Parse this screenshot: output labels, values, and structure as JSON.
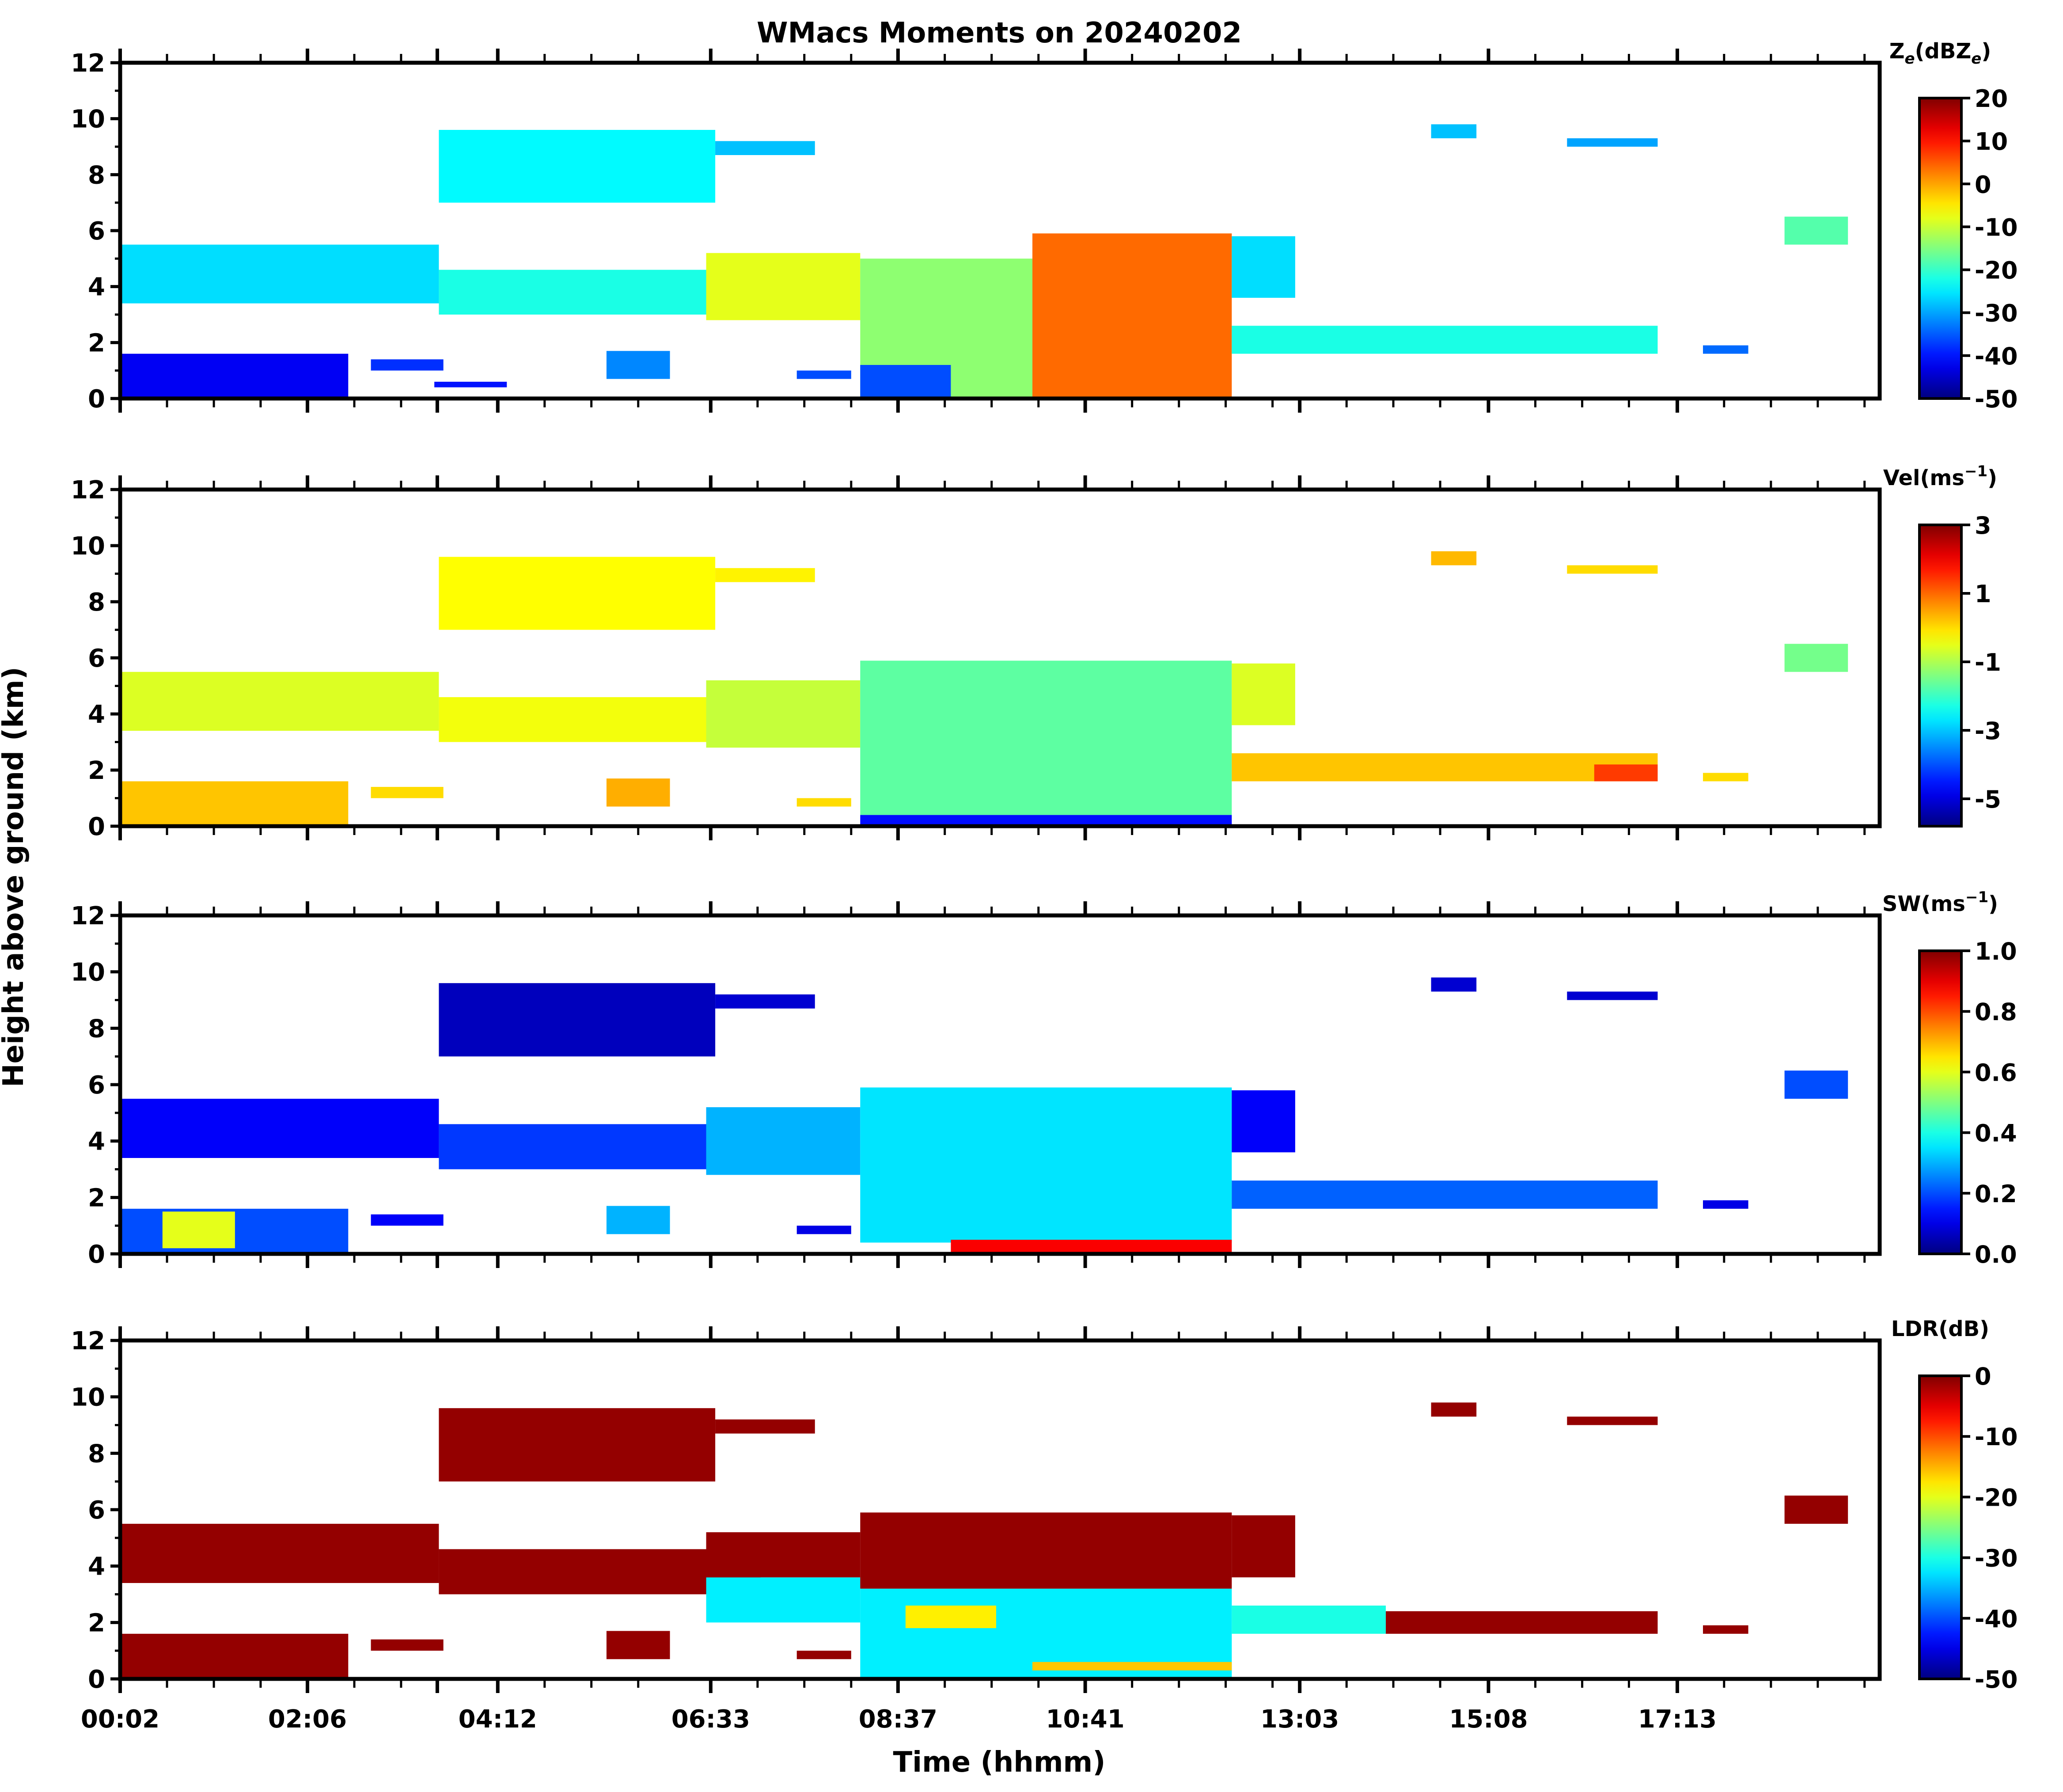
{
  "figure": {
    "title": "WMacs Moments on 20240202",
    "xlabel": "Time (hhmm)",
    "ylabel": "Height above ground (km)"
  },
  "colormap": "jet",
  "chart_data": [
    {
      "type": "heatmap",
      "id": "ze",
      "colorbar_label": "Ze(dBZe)",
      "colorbar_label_main": "Z",
      "colorbar_label_sub1": "e",
      "colorbar_label_mid": "(dBZ",
      "colorbar_label_sub2": "e",
      "colorbar_label_end": ")",
      "clim": [
        -50,
        20
      ],
      "cticks": [
        "20",
        "10",
        "0",
        "-10",
        "-20",
        "-30",
        "-40",
        "-50"
      ],
      "cticks_values": [
        20,
        10,
        0,
        -10,
        -20,
        -30,
        -40,
        -50
      ],
      "ylim": [
        0,
        12
      ],
      "yticks": [
        "0",
        "2",
        "4",
        "6",
        "8",
        "10",
        "12"
      ],
      "yticks_values": [
        0,
        2,
        4,
        6,
        8,
        10,
        12
      ],
      "xlim_hours": [
        0.033,
        19.45
      ],
      "regions": [
        {
          "t0": 0.05,
          "t1": 3.55,
          "h0": 3.4,
          "h1": 5.5,
          "v": -26
        },
        {
          "t0": 3.55,
          "t1": 7.1,
          "h0": 3.0,
          "h1": 4.6,
          "v": -22
        },
        {
          "t0": 3.55,
          "t1": 6.6,
          "h0": 7.0,
          "h1": 9.6,
          "v": -24
        },
        {
          "t0": 6.6,
          "t1": 7.7,
          "h0": 8.7,
          "h1": 9.2,
          "v": -28
        },
        {
          "t0": 0.05,
          "t1": 2.55,
          "h0": 0.0,
          "h1": 1.6,
          "v": -42
        },
        {
          "t0": 2.8,
          "t1": 3.6,
          "h0": 1.0,
          "h1": 1.4,
          "v": -38
        },
        {
          "t0": 3.5,
          "t1": 4.3,
          "h0": 0.4,
          "h1": 0.6,
          "v": -40
        },
        {
          "t0": 5.4,
          "t1": 6.1,
          "h0": 0.7,
          "h1": 1.7,
          "v": -32
        },
        {
          "t0": 6.5,
          "t1": 8.2,
          "h0": 2.8,
          "h1": 5.2,
          "v": -8
        },
        {
          "t0": 8.2,
          "t1": 10.1,
          "h0": 0.0,
          "h1": 5.0,
          "v": -14
        },
        {
          "t0": 8.2,
          "t1": 9.2,
          "h0": 0.0,
          "h1": 1.2,
          "v": -36
        },
        {
          "t0": 10.1,
          "t1": 12.3,
          "h0": 0.0,
          "h1": 5.9,
          "v": 4
        },
        {
          "t0": 12.3,
          "t1": 13.0,
          "h0": 3.6,
          "h1": 5.8,
          "v": -26
        },
        {
          "t0": 12.3,
          "t1": 17.0,
          "h0": 1.6,
          "h1": 2.6,
          "v": -22
        },
        {
          "t0": 14.5,
          "t1": 15.0,
          "h0": 9.3,
          "h1": 9.8,
          "v": -28
        },
        {
          "t0": 16.0,
          "t1": 17.0,
          "h0": 9.0,
          "h1": 9.3,
          "v": -30
        },
        {
          "t0": 17.5,
          "t1": 18.0,
          "h0": 1.6,
          "h1": 1.9,
          "v": -34
        },
        {
          "t0": 18.4,
          "t1": 19.1,
          "h0": 5.5,
          "h1": 6.5,
          "v": -18
        },
        {
          "t0": 7.5,
          "t1": 8.1,
          "h0": 0.7,
          "h1": 1.0,
          "v": -36
        }
      ]
    },
    {
      "type": "heatmap",
      "id": "vel",
      "colorbar_label": "Vel(ms-1)",
      "colorbar_label_main": "Vel(ms",
      "colorbar_label_sup": "−1",
      "colorbar_label_end": ")",
      "clim": [
        -5.8,
        3
      ],
      "cticks": [
        "3",
        "1",
        "-1",
        "-3",
        "-5"
      ],
      "cticks_values": [
        3,
        1,
        -1,
        -3,
        -5
      ],
      "ylim": [
        0,
        12
      ],
      "yticks": [
        "0",
        "2",
        "4",
        "6",
        "8",
        "10",
        "12"
      ],
      "yticks_values": [
        0,
        2,
        4,
        6,
        8,
        10,
        12
      ],
      "xlim_hours": [
        0.033,
        19.45
      ],
      "regions": [
        {
          "t0": 0.05,
          "t1": 3.55,
          "h0": 3.4,
          "h1": 5.5,
          "v": -0.6
        },
        {
          "t0": 3.55,
          "t1": 7.1,
          "h0": 3.0,
          "h1": 4.6,
          "v": -0.4
        },
        {
          "t0": 3.55,
          "t1": 6.6,
          "h0": 7.0,
          "h1": 9.6,
          "v": -0.3
        },
        {
          "t0": 6.6,
          "t1": 7.7,
          "h0": 8.7,
          "h1": 9.2,
          "v": -0.2
        },
        {
          "t0": 0.05,
          "t1": 2.55,
          "h0": 0.0,
          "h1": 1.6,
          "v": 0.2
        },
        {
          "t0": 2.8,
          "t1": 3.6,
          "h0": 1.0,
          "h1": 1.4,
          "v": 0.0
        },
        {
          "t0": 5.4,
          "t1": 6.1,
          "h0": 0.7,
          "h1": 1.7,
          "v": 0.4
        },
        {
          "t0": 6.5,
          "t1": 8.2,
          "h0": 2.8,
          "h1": 5.2,
          "v": -0.8
        },
        {
          "t0": 8.2,
          "t1": 12.3,
          "h0": 0.4,
          "h1": 5.9,
          "v": -1.7
        },
        {
          "t0": 8.2,
          "t1": 12.3,
          "h0": 0.0,
          "h1": 0.4,
          "v": -4.6
        },
        {
          "t0": 12.3,
          "t1": 13.0,
          "h0": 3.6,
          "h1": 5.8,
          "v": -0.6
        },
        {
          "t0": 12.3,
          "t1": 17.0,
          "h0": 1.6,
          "h1": 2.6,
          "v": 0.2
        },
        {
          "t0": 16.3,
          "t1": 17.0,
          "h0": 1.6,
          "h1": 2.2,
          "v": 1.4
        },
        {
          "t0": 14.5,
          "t1": 15.0,
          "h0": 9.3,
          "h1": 9.8,
          "v": 0.3
        },
        {
          "t0": 16.0,
          "t1": 17.0,
          "h0": 9.0,
          "h1": 9.3,
          "v": 0.0
        },
        {
          "t0": 17.5,
          "t1": 18.0,
          "h0": 1.6,
          "h1": 1.9,
          "v": 0.0
        },
        {
          "t0": 18.4,
          "t1": 19.1,
          "h0": 5.5,
          "h1": 6.5,
          "v": -1.5
        },
        {
          "t0": 7.5,
          "t1": 8.1,
          "h0": 0.7,
          "h1": 1.0,
          "v": 0.0
        }
      ]
    },
    {
      "type": "heatmap",
      "id": "sw",
      "colorbar_label": "SW(ms-1)",
      "colorbar_label_main": "SW(ms",
      "colorbar_label_sup": "−1",
      "colorbar_label_end": ")",
      "clim": [
        0,
        1
      ],
      "cticks": [
        "1.0",
        "0.8",
        "0.6",
        "0.4",
        "0.2",
        "0.0"
      ],
      "cticks_values": [
        1.0,
        0.8,
        0.6,
        0.4,
        0.2,
        0.0
      ],
      "ylim": [
        0,
        12
      ],
      "yticks": [
        "0",
        "2",
        "4",
        "6",
        "8",
        "10",
        "12"
      ],
      "yticks_values": [
        0,
        2,
        4,
        6,
        8,
        10,
        12
      ],
      "xlim_hours": [
        0.033,
        19.45
      ],
      "regions": [
        {
          "t0": 0.05,
          "t1": 3.55,
          "h0": 3.4,
          "h1": 5.5,
          "v": 0.12
        },
        {
          "t0": 3.55,
          "t1": 7.1,
          "h0": 3.0,
          "h1": 4.6,
          "v": 0.18
        },
        {
          "t0": 3.55,
          "t1": 6.6,
          "h0": 7.0,
          "h1": 9.6,
          "v": 0.06
        },
        {
          "t0": 6.6,
          "t1": 7.7,
          "h0": 8.7,
          "h1": 9.2,
          "v": 0.08
        },
        {
          "t0": 0.05,
          "t1": 2.55,
          "h0": 0.0,
          "h1": 1.6,
          "v": 0.2
        },
        {
          "t0": 0.5,
          "t1": 1.3,
          "h0": 0.2,
          "h1": 1.5,
          "v": 0.6
        },
        {
          "t0": 2.8,
          "t1": 3.6,
          "h0": 1.0,
          "h1": 1.4,
          "v": 0.12
        },
        {
          "t0": 5.4,
          "t1": 6.1,
          "h0": 0.7,
          "h1": 1.7,
          "v": 0.3
        },
        {
          "t0": 6.5,
          "t1": 8.2,
          "h0": 2.8,
          "h1": 5.2,
          "v": 0.3
        },
        {
          "t0": 8.2,
          "t1": 12.3,
          "h0": 0.4,
          "h1": 5.9,
          "v": 0.35
        },
        {
          "t0": 9.2,
          "t1": 12.3,
          "h0": 0.0,
          "h1": 0.5,
          "v": 0.88
        },
        {
          "t0": 12.3,
          "t1": 13.0,
          "h0": 3.6,
          "h1": 5.8,
          "v": 0.12
        },
        {
          "t0": 12.3,
          "t1": 17.0,
          "h0": 1.6,
          "h1": 2.6,
          "v": 0.22
        },
        {
          "t0": 14.5,
          "t1": 15.0,
          "h0": 9.3,
          "h1": 9.8,
          "v": 0.08
        },
        {
          "t0": 16.0,
          "t1": 17.0,
          "h0": 9.0,
          "h1": 9.3,
          "v": 0.08
        },
        {
          "t0": 17.5,
          "t1": 18.0,
          "h0": 1.6,
          "h1": 1.9,
          "v": 0.1
        },
        {
          "t0": 18.4,
          "t1": 19.1,
          "h0": 5.5,
          "h1": 6.5,
          "v": 0.2
        },
        {
          "t0": 7.5,
          "t1": 8.1,
          "h0": 0.7,
          "h1": 1.0,
          "v": 0.1
        }
      ]
    },
    {
      "type": "heatmap",
      "id": "ldr",
      "colorbar_label": "LDR(dB)",
      "colorbar_label_main": "LDR(dB)",
      "clim": [
        -50,
        0
      ],
      "cticks": [
        "0",
        "-10",
        "-20",
        "-30",
        "-40",
        "-50"
      ],
      "cticks_values": [
        0,
        -10,
        -20,
        -30,
        -40,
        -50
      ],
      "ylim": [
        0,
        12
      ],
      "yticks": [
        "0",
        "2",
        "4",
        "6",
        "8",
        "10",
        "12"
      ],
      "yticks_values": [
        0,
        2,
        4,
        6,
        8,
        10,
        12
      ],
      "xlim_hours": [
        0.033,
        19.45
      ],
      "regions": [
        {
          "t0": 0.05,
          "t1": 3.55,
          "h0": 3.4,
          "h1": 5.5,
          "v": -1
        },
        {
          "t0": 3.55,
          "t1": 7.1,
          "h0": 3.0,
          "h1": 4.6,
          "v": -1
        },
        {
          "t0": 3.55,
          "t1": 6.6,
          "h0": 7.0,
          "h1": 9.6,
          "v": -1
        },
        {
          "t0": 6.6,
          "t1": 7.7,
          "h0": 8.7,
          "h1": 9.2,
          "v": -1
        },
        {
          "t0": 0.05,
          "t1": 2.55,
          "h0": 0.0,
          "h1": 1.6,
          "v": -1
        },
        {
          "t0": 2.8,
          "t1": 3.6,
          "h0": 1.0,
          "h1": 1.4,
          "v": -1
        },
        {
          "t0": 5.4,
          "t1": 6.1,
          "h0": 0.7,
          "h1": 1.7,
          "v": -1
        },
        {
          "t0": 6.5,
          "t1": 8.2,
          "h0": 2.0,
          "h1": 3.6,
          "v": -32
        },
        {
          "t0": 6.5,
          "t1": 8.2,
          "h0": 3.6,
          "h1": 5.2,
          "v": -1
        },
        {
          "t0": 8.2,
          "t1": 12.3,
          "h0": 0.0,
          "h1": 3.2,
          "v": -32
        },
        {
          "t0": 8.2,
          "t1": 12.3,
          "h0": 3.2,
          "h1": 5.9,
          "v": -1
        },
        {
          "t0": 8.7,
          "t1": 9.7,
          "h0": 1.8,
          "h1": 2.6,
          "v": -18
        },
        {
          "t0": 10.1,
          "t1": 12.3,
          "h0": 0.3,
          "h1": 0.6,
          "v": -16
        },
        {
          "t0": 12.3,
          "t1": 13.0,
          "h0": 3.6,
          "h1": 5.8,
          "v": -1
        },
        {
          "t0": 12.3,
          "t1": 14.0,
          "h0": 1.6,
          "h1": 2.6,
          "v": -30
        },
        {
          "t0": 14.0,
          "t1": 17.0,
          "h0": 1.6,
          "h1": 2.4,
          "v": -1
        },
        {
          "t0": 14.5,
          "t1": 15.0,
          "h0": 9.3,
          "h1": 9.8,
          "v": -1
        },
        {
          "t0": 16.0,
          "t1": 17.0,
          "h0": 9.0,
          "h1": 9.3,
          "v": -1
        },
        {
          "t0": 17.5,
          "t1": 18.0,
          "h0": 1.6,
          "h1": 1.9,
          "v": -1
        },
        {
          "t0": 18.4,
          "t1": 19.1,
          "h0": 5.5,
          "h1": 6.5,
          "v": -1
        },
        {
          "t0": 7.5,
          "t1": 8.1,
          "h0": 0.7,
          "h1": 1.0,
          "v": -1
        }
      ]
    }
  ],
  "time_axis": {
    "labels": [
      "00:02",
      "02:06",
      "04:12",
      "06:33",
      "08:37",
      "10:41",
      "13:03",
      "15:08",
      "17:13"
    ],
    "label_hours": [
      0.033,
      2.1,
      4.2,
      6.55,
      8.617,
      10.683,
      13.05,
      15.133,
      17.217
    ],
    "major_hours": [
      0.033,
      2.1,
      3.533,
      4.2,
      6.55,
      8.617,
      10.683,
      13.05,
      15.133,
      17.217
    ],
    "minor_hours": [
      0.55,
      1.067,
      1.583,
      2.617,
      3.133,
      4.717,
      5.233,
      5.75,
      7.067,
      7.583,
      8.1,
      9.133,
      9.65,
      10.167,
      11.2,
      11.717,
      12.233,
      12.75,
      13.567,
      14.083,
      14.6,
      15.65,
      16.167,
      16.683,
      17.733,
      18.25,
      18.767,
      19.283
    ]
  }
}
